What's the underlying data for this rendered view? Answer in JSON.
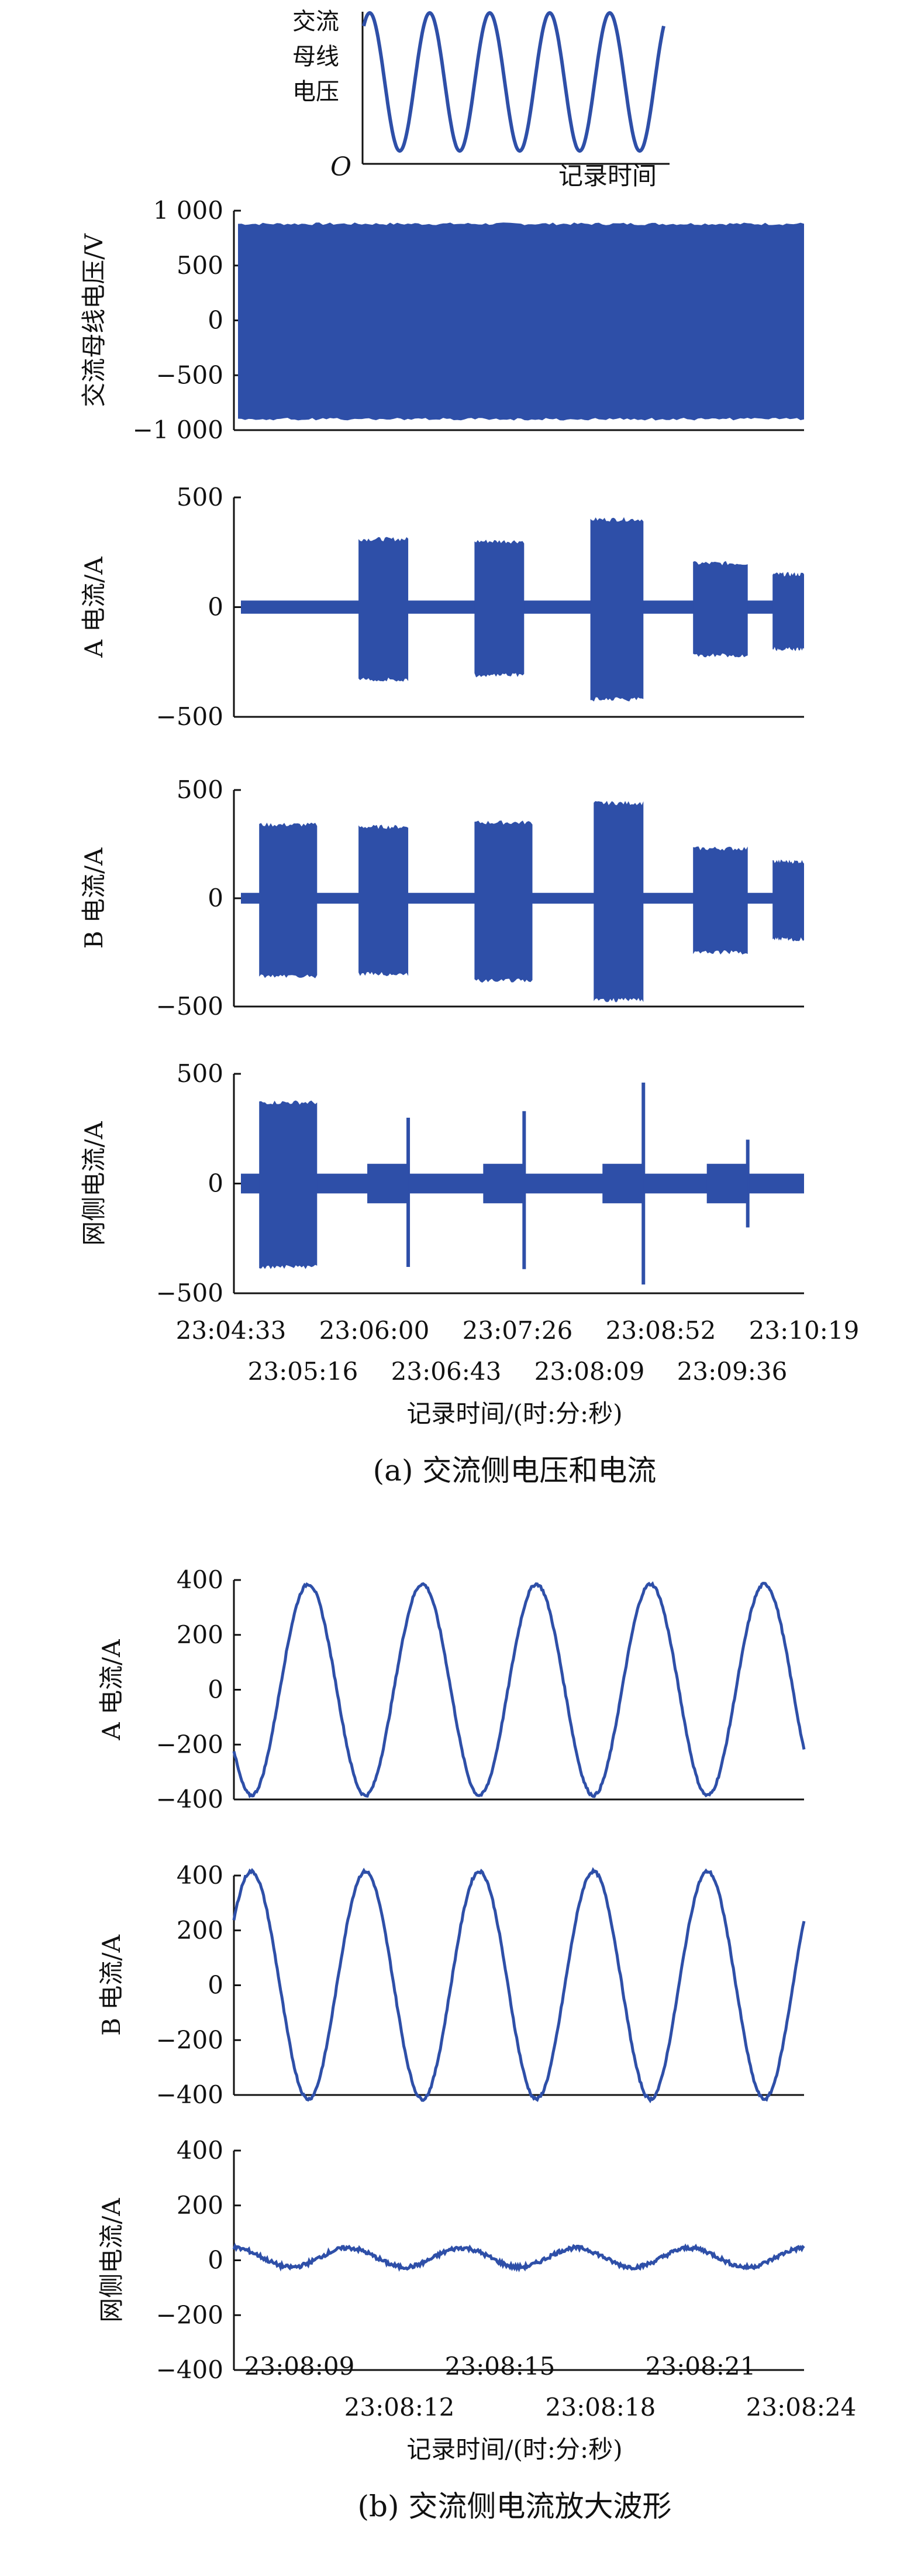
{
  "inset": {
    "ylabel_lines": [
      "交流",
      "母线",
      "电压"
    ],
    "origin": "O",
    "xlabel": "记录时间",
    "cycles": 5
  },
  "part_a": {
    "caption": "(a) 交流侧电压和电流",
    "xlabel": "记录时间/(时:分:秒)",
    "xticks_top": [
      "23:04:33",
      "23:06:00",
      "23:07:26",
      "23:08:52",
      "23:10:19"
    ],
    "xticks_bottom": [
      "23:05:16",
      "23:06:43",
      "23:08:09",
      "23:09:36"
    ]
  },
  "part_b": {
    "caption": "(b) 交流侧电流放大波形",
    "xlabel": "记录时间/(时:分:秒)",
    "xticks_top": [
      "23:08:09",
      "23:08:15",
      "23:08:21"
    ],
    "xticks_bottom": [
      "23:08:12",
      "23:08:18",
      "23:08:24"
    ]
  },
  "chart_data": [
    {
      "type": "area",
      "ylabel": "交流母线电压/V",
      "ylim": [
        -1000,
        1000
      ],
      "yticks": [
        "1 000",
        "500",
        "0",
        "−500",
        "−1 000"
      ],
      "yvalues": [
        1000,
        500,
        0,
        -500,
        -1000
      ],
      "series": [
        {
          "envelope_upper": 880,
          "envelope_lower": -900,
          "x_range": [
            "23:04:33",
            "23:10:19"
          ]
        }
      ],
      "color": "#2e4fa8"
    },
    {
      "type": "area",
      "ylabel": "A 电流/A",
      "ylim": [
        -500,
        500
      ],
      "yticks": [
        "500",
        "0",
        "−500"
      ],
      "yvalues": [
        500,
        0,
        -500
      ],
      "baseline_amplitude": 30,
      "bursts": [
        {
          "start": "23:05:50",
          "end": "23:06:20",
          "amp_upper": 310,
          "amp_lower": -330
        },
        {
          "start": "23:07:00",
          "end": "23:07:30",
          "amp_upper": 300,
          "amp_lower": -310
        },
        {
          "start": "23:08:10",
          "end": "23:08:42",
          "amp_upper": 400,
          "amp_lower": -420
        },
        {
          "start": "23:09:12",
          "end": "23:09:45",
          "amp_upper": 200,
          "amp_lower": -220
        },
        {
          "start": "23:10:00",
          "end": "23:10:19",
          "amp_upper": 150,
          "amp_lower": -190
        }
      ],
      "color": "#2e4fa8"
    },
    {
      "type": "area",
      "ylabel": "B 电流/A",
      "ylim": [
        -500,
        500
      ],
      "yticks": [
        "500",
        "0",
        "−500"
      ],
      "yvalues": [
        500,
        0,
        -500
      ],
      "baseline_amplitude": 25,
      "bursts": [
        {
          "start": "23:04:50",
          "end": "23:05:25",
          "amp_upper": 340,
          "amp_lower": -360
        },
        {
          "start": "23:05:50",
          "end": "23:06:20",
          "amp_upper": 330,
          "amp_lower": -350
        },
        {
          "start": "23:07:00",
          "end": "23:07:35",
          "amp_upper": 350,
          "amp_lower": -380
        },
        {
          "start": "23:08:12",
          "end": "23:08:42",
          "amp_upper": 440,
          "amp_lower": -470
        },
        {
          "start": "23:09:12",
          "end": "23:09:45",
          "amp_upper": 230,
          "amp_lower": -250
        },
        {
          "start": "23:10:00",
          "end": "23:10:19",
          "amp_upper": 170,
          "amp_lower": -190
        }
      ],
      "color": "#2e4fa8"
    },
    {
      "type": "area",
      "ylabel": "网侧电流/A",
      "ylim": [
        -500,
        500
      ],
      "yticks": [
        "500",
        "0",
        "−500"
      ],
      "yvalues": [
        500,
        0,
        -500
      ],
      "baseline_amplitude": 45,
      "bursts": [
        {
          "start": "23:04:50",
          "end": "23:05:25",
          "amp_upper": 370,
          "amp_lower": -380
        }
      ],
      "spikes": [
        {
          "at": "23:06:20",
          "upper": 300,
          "lower": -380
        },
        {
          "at": "23:07:30",
          "upper": 330,
          "lower": -390
        },
        {
          "at": "23:08:42",
          "upper": 460,
          "lower": -460
        },
        {
          "at": "23:09:45",
          "upper": 200,
          "lower": -200
        }
      ],
      "color": "#2e4fa8"
    },
    {
      "type": "line",
      "ylabel": "A 电流/A",
      "ylim": [
        -400,
        400
      ],
      "yticks": [
        "400",
        "200",
        "0",
        "−200",
        "−400"
      ],
      "yvalues": [
        400,
        200,
        0,
        -200,
        -400
      ],
      "xlim": [
        "23:08:07",
        "23:08:24"
      ],
      "series": [
        {
          "amplitude": 385,
          "cycles": 5,
          "phase_deg": 215
        }
      ],
      "color": "#2e4fa8"
    },
    {
      "type": "line",
      "ylabel": "B 电流/A",
      "ylim": [
        -400,
        400
      ],
      "yticks": [
        "400",
        "200",
        "0",
        "−200",
        "−400"
      ],
      "yvalues": [
        400,
        200,
        0,
        -200,
        -400
      ],
      "xlim": [
        "23:08:07",
        "23:08:24"
      ],
      "series": [
        {
          "amplitude": 415,
          "cycles": 5,
          "phase_deg": 35
        }
      ],
      "color": "#2e4fa8"
    },
    {
      "type": "line",
      "ylabel": "网侧电流/A",
      "ylim": [
        -400,
        400
      ],
      "yticks": [
        "400",
        "200",
        "0",
        "−200",
        "−400"
      ],
      "yvalues": [
        400,
        200,
        0,
        -200,
        -400
      ],
      "xlim": [
        "23:08:07",
        "23:08:24"
      ],
      "series": [
        {
          "amplitude": 35,
          "cycles": 5,
          "phase_deg": 90,
          "offset": 10
        }
      ],
      "color": "#2e4fa8"
    }
  ]
}
